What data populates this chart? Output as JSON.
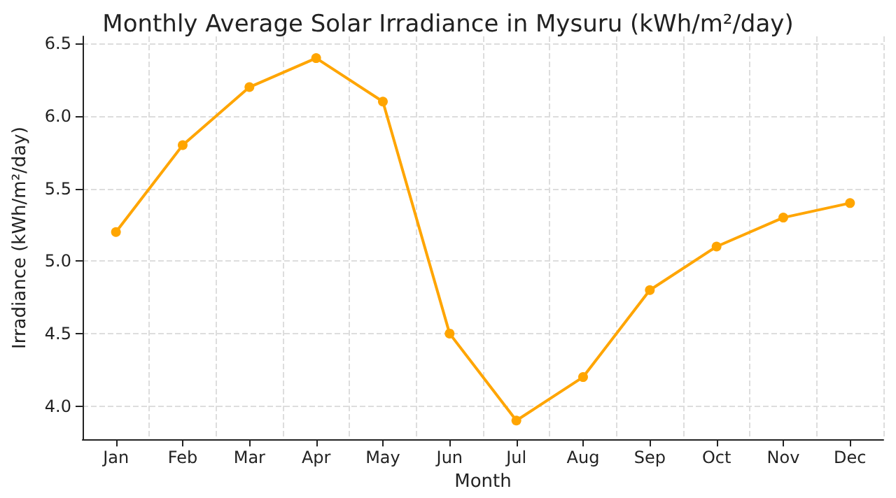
{
  "chart_data": {
    "type": "line",
    "title": "Monthly Average Solar Irradiance in Mysuru (kWh/m²/day)",
    "xlabel": "Month",
    "ylabel": "Irradiance (kWh/m²/day)",
    "categories": [
      "Jan",
      "Feb",
      "Mar",
      "Apr",
      "May",
      "Jun",
      "Jul",
      "Aug",
      "Sep",
      "Oct",
      "Nov",
      "Dec"
    ],
    "series": [
      {
        "color": "#ffa500",
        "values": [
          5.2,
          5.8,
          6.2,
          6.4,
          6.1,
          4.5,
          3.9,
          4.2,
          4.8,
          5.1,
          5.3,
          5.4
        ]
      }
    ],
    "ylim": [
      3.77,
      6.55
    ],
    "yticks": [
      {
        "value": 4.0,
        "label": "4.0"
      },
      {
        "value": 4.5,
        "label": "4.5"
      },
      {
        "value": 5.0,
        "label": "5.0"
      },
      {
        "value": 5.5,
        "label": "5.5"
      },
      {
        "value": 6.0,
        "label": "6.0"
      },
      {
        "value": 6.5,
        "label": "6.5"
      }
    ],
    "grid": true,
    "marker": "circle",
    "line_style": "solid"
  }
}
